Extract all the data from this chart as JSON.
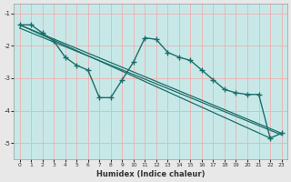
{
  "xlabel": "Humidex (Indice chaleur)",
  "plot_bg_color": "#c8e8e8",
  "fig_bg_color": "#e8e8e8",
  "grid_color": "#e8b8b8",
  "line_color": "#1a6e6a",
  "xlim": [
    -0.5,
    23.5
  ],
  "ylim": [
    -5.5,
    -0.7
  ],
  "yticks": [
    -5,
    -4,
    -3,
    -2,
    -1
  ],
  "xticks": [
    0,
    1,
    2,
    3,
    4,
    5,
    6,
    7,
    8,
    9,
    10,
    11,
    12,
    13,
    14,
    15,
    16,
    17,
    18,
    19,
    20,
    21,
    22,
    23
  ],
  "curve1_x": [
    0,
    1,
    2,
    3,
    4,
    5,
    6,
    7,
    8,
    9,
    10,
    11,
    12,
    13,
    14,
    15,
    16,
    17,
    18,
    19,
    20,
    21,
    22,
    23
  ],
  "curve1_y": [
    -1.35,
    -1.35,
    -1.6,
    -1.85,
    -2.35,
    -2.6,
    -2.75,
    -3.6,
    -3.6,
    -3.05,
    -2.5,
    -1.75,
    -1.8,
    -2.2,
    -2.35,
    -2.45,
    -2.75,
    -3.05,
    -3.35,
    -3.45,
    -3.5,
    -3.5,
    -4.85,
    -4.7
  ],
  "line1_x": [
    0,
    22
  ],
  "line1_y": [
    -1.35,
    -4.85
  ],
  "line2_x": [
    0,
    23
  ],
  "line2_y": [
    -1.35,
    -4.7
  ],
  "line3_x": [
    0,
    23
  ],
  "line3_y": [
    -1.45,
    -4.75
  ]
}
